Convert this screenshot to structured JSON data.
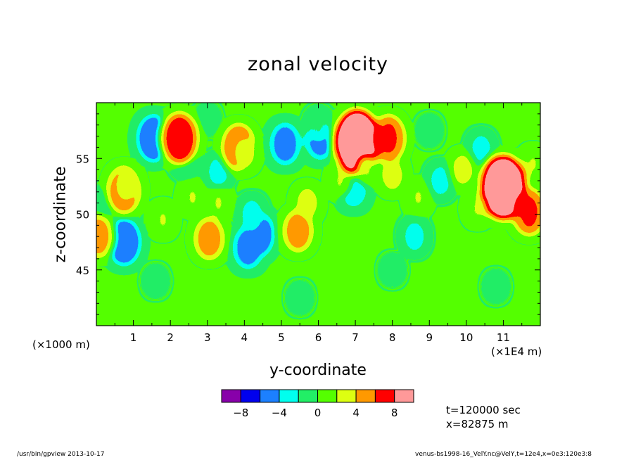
{
  "chart_data": {
    "type": "heatmap",
    "title": "zonal velocity",
    "xlabel": "y-coordinate",
    "ylabel": "z-coordinate",
    "x_unit_left": "(×1000 m)",
    "x_unit_right": "(×1E4 m)",
    "xlim": [
      0,
      12
    ],
    "ylim": [
      40,
      60
    ],
    "xticks": [
      "1",
      "2",
      "3",
      "4",
      "5",
      "6",
      "7",
      "8",
      "9",
      "10",
      "11"
    ],
    "xtick_values": [
      1,
      2,
      3,
      4,
      5,
      6,
      7,
      8,
      9,
      10,
      11
    ],
    "yticks": [
      "45",
      "50",
      "55"
    ],
    "ytick_values": [
      45,
      50,
      55
    ],
    "colorbar": {
      "colors": [
        "#8800aa",
        "#0000ee",
        "#1c80ff",
        "#00ffee",
        "#22ee66",
        "#55ff00",
        "#ddff11",
        "#ff9900",
        "#ff0000",
        "#ff9999"
      ],
      "labels": [
        "−8",
        "−4",
        "0",
        "4",
        "8"
      ],
      "label_values": [
        -8,
        -4,
        0,
        4,
        8
      ],
      "levels": [
        -10,
        -8,
        -6,
        -4,
        -2,
        0,
        2,
        4,
        6,
        8,
        10
      ]
    },
    "features": [
      {
        "x": 1.55,
        "y": 56.8,
        "value": -6
      },
      {
        "x": 0.75,
        "y": 47.5,
        "value": -6
      },
      {
        "x": 4.35,
        "y": 48.2,
        "value": -6
      },
      {
        "x": 4.1,
        "y": 47.0,
        "value": -5
      },
      {
        "x": 6.05,
        "y": 56.8,
        "value": -5
      },
      {
        "x": 5.1,
        "y": 56.3,
        "value": -5
      },
      {
        "x": 6.95,
        "y": 52.3,
        "value": -4
      },
      {
        "x": 2.4,
        "y": 55.0,
        "value": -3
      },
      {
        "x": 3.3,
        "y": 53.8,
        "value": -3
      },
      {
        "x": 9.3,
        "y": 53.0,
        "value": -3
      },
      {
        "x": 10.4,
        "y": 55.8,
        "value": -3
      },
      {
        "x": 4.2,
        "y": 50.0,
        "value": -3
      },
      {
        "x": 8.6,
        "y": 48.0,
        "value": -3
      },
      {
        "x": 0.25,
        "y": 51.0,
        "value": -2
      },
      {
        "x": 6.0,
        "y": 58.0,
        "value": -2
      },
      {
        "x": 7.05,
        "y": 56.5,
        "value": 10
      },
      {
        "x": 11.0,
        "y": 52.4,
        "value": 10
      },
      {
        "x": 2.25,
        "y": 56.8,
        "value": 7
      },
      {
        "x": 7.9,
        "y": 56.8,
        "value": 6
      },
      {
        "x": 0.75,
        "y": 52.2,
        "value": 6
      },
      {
        "x": 11.7,
        "y": 50.2,
        "value": 6
      },
      {
        "x": 3.85,
        "y": 56.0,
        "value": 6
      },
      {
        "x": 5.45,
        "y": 48.5,
        "value": 5
      },
      {
        "x": 3.05,
        "y": 47.8,
        "value": 5
      },
      {
        "x": 0.05,
        "y": 48.0,
        "value": 5
      },
      {
        "x": 4.0,
        "y": 55.5,
        "value": 3
      },
      {
        "x": 0.8,
        "y": 52.5,
        "value": 3
      },
      {
        "x": 5.7,
        "y": 51.0,
        "value": 3
      },
      {
        "x": 8.0,
        "y": 53.5,
        "value": 3
      },
      {
        "x": 9.9,
        "y": 54.0,
        "value": 3
      },
      {
        "x": 2.6,
        "y": 51.5,
        "value": 2
      },
      {
        "x": 1.8,
        "y": 49.5,
        "value": 2
      },
      {
        "x": 6.6,
        "y": 53.0,
        "value": 2
      },
      {
        "x": 7.3,
        "y": 54.0,
        "value": 2
      },
      {
        "x": 8.7,
        "y": 51.5,
        "value": 2
      },
      {
        "x": 10.3,
        "y": 50.5,
        "value": 2
      },
      {
        "x": 3.3,
        "y": 51.0,
        "value": 2
      },
      {
        "x": 11.8,
        "y": 54.5,
        "value": 2
      },
      {
        "x": 1.6,
        "y": 44.0,
        "value": -1
      },
      {
        "x": 5.5,
        "y": 42.5,
        "value": -1
      },
      {
        "x": 8.0,
        "y": 45.0,
        "value": -1
      },
      {
        "x": 10.8,
        "y": 43.5,
        "value": -1
      },
      {
        "x": 3.0,
        "y": 58.5,
        "value": -1
      },
      {
        "x": 9.0,
        "y": 57.5,
        "value": -1
      }
    ]
  },
  "info": {
    "time": "t=120000 sec",
    "xpos": "x=82875 m"
  },
  "footer": {
    "left": "/usr/bin/gpview  2013-10-17",
    "right": "venus-bs1998-16_VelY.nc@VelY,t=12e4,x=0e3:120e3:8"
  }
}
